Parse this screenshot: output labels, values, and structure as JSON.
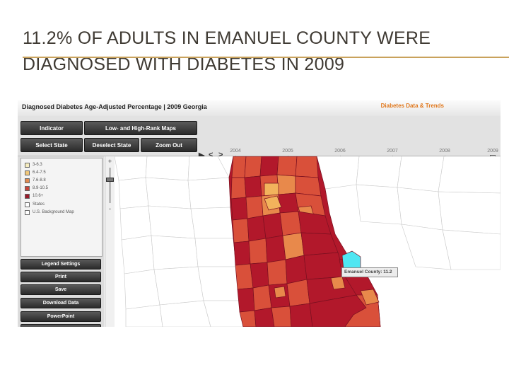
{
  "slide": {
    "title_line1": "11.2% OF ADULTS IN EMANUEL COUNTY WERE",
    "title_line2": "DIAGNOSED WITH DIABETES IN 2009"
  },
  "app": {
    "title": "Diagnosed Diabetes Age-Adjusted Percentage | 2009   Georgia",
    "link": "Diabetes Data & Trends"
  },
  "toolbar": {
    "indicator": "Indicator",
    "maps": "Low- and High-Rank Maps",
    "select_state": "Select State",
    "deselect_state": "Deselect State",
    "zoom_out": "Zoom Out"
  },
  "timeline": {
    "play": "▶",
    "prev": "<",
    "next": ">",
    "years": [
      "2004",
      "2005",
      "2006",
      "2007",
      "2008",
      "2009"
    ],
    "selected_year": "2009"
  },
  "legend": {
    "items": [
      {
        "label": "3-6.3",
        "color": "#f7eec0"
      },
      {
        "label": "6.4-7.5",
        "color": "#f2c87a"
      },
      {
        "label": "7.6-8.8",
        "color": "#e28a4f"
      },
      {
        "label": "8.9-10.5",
        "color": "#c7443a"
      },
      {
        "label": "10.6+",
        "color": "#9b1b2a"
      },
      {
        "label": "States",
        "color": "#ffffff"
      },
      {
        "label": "U.S. Background Map",
        "color": "#ffffff"
      }
    ]
  },
  "panel_buttons": {
    "legend_settings": "Legend Settings",
    "print": "Print",
    "save": "Save",
    "download": "Download Data",
    "powerpoint": "PowerPoint"
  },
  "zoom": {
    "plus": "+",
    "minus": "-"
  },
  "tooltip": {
    "text": "Emanuel County: 11.2"
  },
  "colors": {
    "title_rule": "#c9a25c",
    "highlight": "#4fe6f2",
    "dark_red": "#b2182b",
    "orange_red": "#d9503a",
    "orange": "#e8894b",
    "light_orange": "#f2b35c"
  }
}
